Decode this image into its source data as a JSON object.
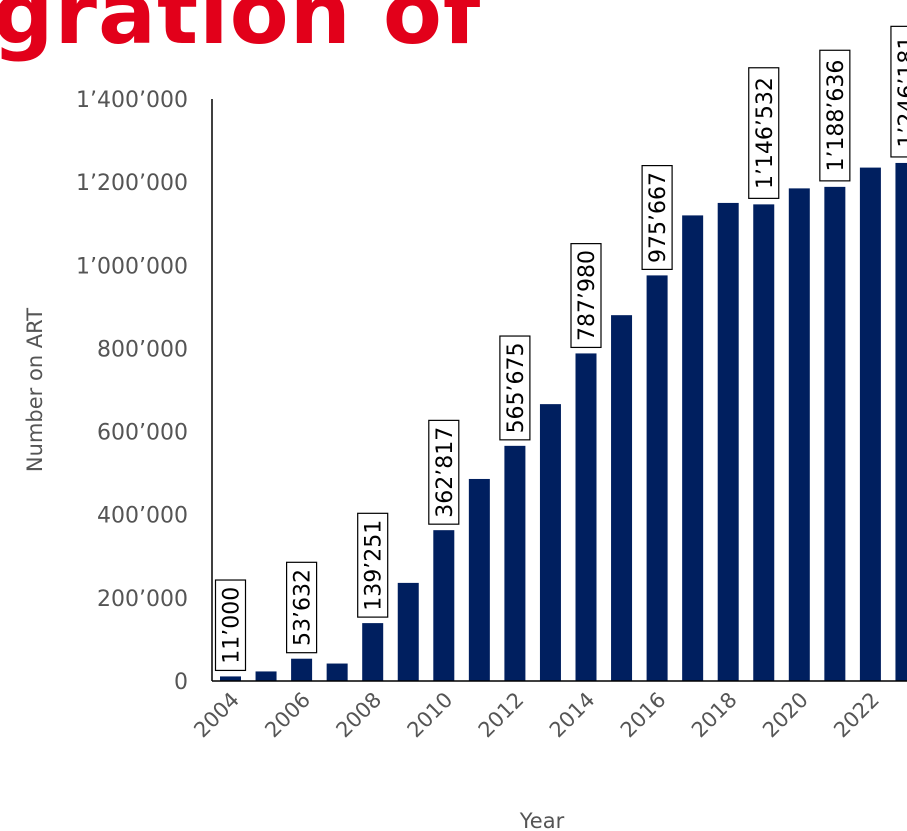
{
  "title": "gration of",
  "colors": {
    "bar": "#001f5f",
    "title": "#e2001a",
    "text": "#555555",
    "axis": "#000000"
  },
  "chart_data": {
    "type": "bar",
    "xlabel": "Year",
    "ylabel": "Number on ART",
    "ylim": [
      0,
      1400000
    ],
    "yticks": [
      0,
      200000,
      400000,
      600000,
      800000,
      1000000,
      1200000,
      1400000
    ],
    "ytick_labels": [
      "0",
      "200’000",
      "400’000",
      "600’000",
      "800’000",
      "1’000’000",
      "1’200’000",
      "1’400’000"
    ],
    "xtick_labels": [
      "2004",
      "2006",
      "2008",
      "2010",
      "2012",
      "2014",
      "2016",
      "2018",
      "2020",
      "2022"
    ],
    "categories": [
      2004,
      2005,
      2006,
      2007,
      2008,
      2009,
      2010,
      2011,
      2012,
      2013,
      2014,
      2015,
      2016,
      2017,
      2018,
      2019,
      2020,
      2021,
      2022,
      2023
    ],
    "values": [
      11000,
      23000,
      53632,
      42000,
      139251,
      236000,
      362817,
      486000,
      565675,
      666000,
      787980,
      880000,
      975667,
      1120000,
      1150000,
      1146532,
      1185000,
      1188636,
      1235000,
      1246181
    ],
    "data_labels": [
      {
        "year": 2004,
        "label": "11’000"
      },
      {
        "year": 2006,
        "label": "53’632"
      },
      {
        "year": 2008,
        "label": "139’251"
      },
      {
        "year": 2010,
        "label": "362’817"
      },
      {
        "year": 2012,
        "label": "565’675"
      },
      {
        "year": 2014,
        "label": "787’980"
      },
      {
        "year": 2016,
        "label": "975’667"
      },
      {
        "year": 2019,
        "label": "1’146’532"
      },
      {
        "year": 2021,
        "label": "1’188’636"
      },
      {
        "year": 2023,
        "label": "1’246’181"
      }
    ],
    "grid": false
  }
}
